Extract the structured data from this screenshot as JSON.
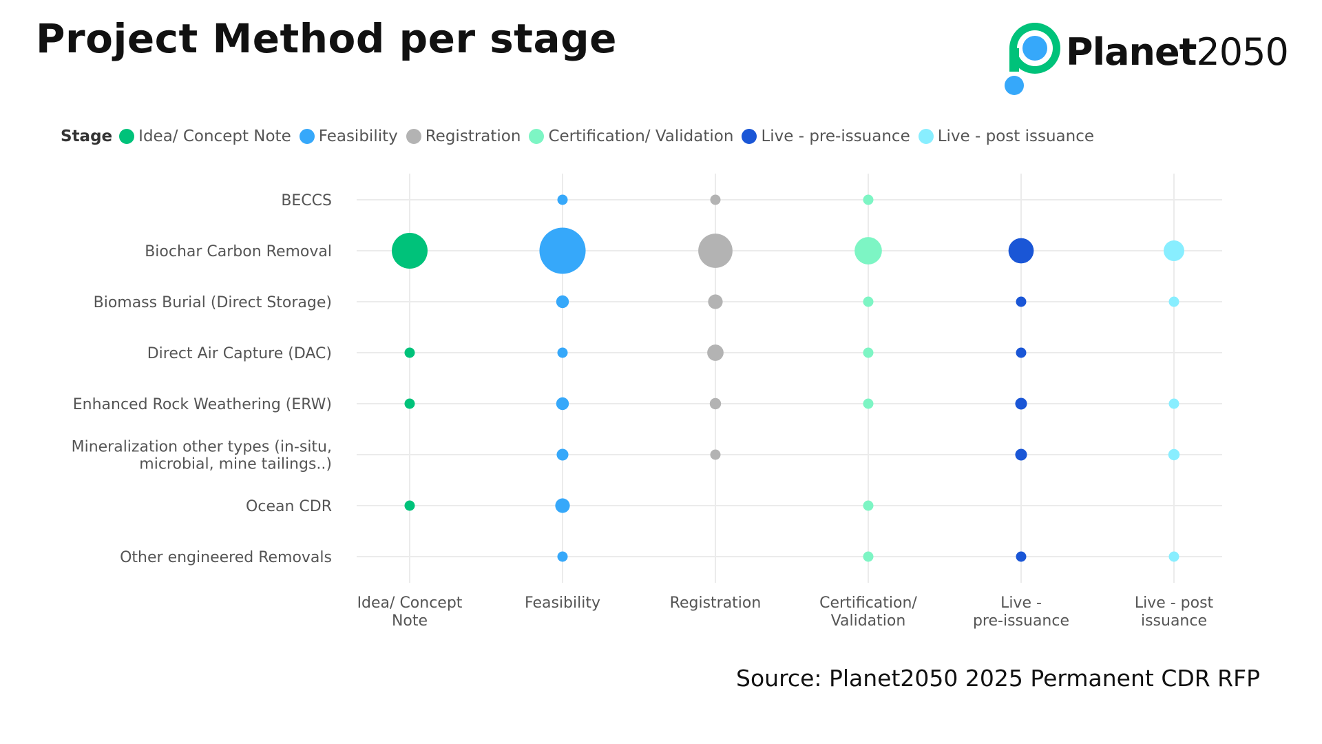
{
  "title": "Project Method per stage",
  "logo": {
    "text_bold": "Planet",
    "text_light": "2050"
  },
  "legend": {
    "title": "Stage"
  },
  "source": "Source: Planet2050 2025 Permanent CDR RFP",
  "chart_data": {
    "type": "scatter",
    "subtype": "bubble-matrix",
    "legend_position": "top-left",
    "grid": true,
    "stages": [
      {
        "name": "Idea/ Concept Note",
        "label_lines": [
          "Idea/ Concept",
          "Note"
        ],
        "color": "#00C27A"
      },
      {
        "name": "Feasibility",
        "label_lines": [
          "Feasibility"
        ],
        "color": "#36A8FA"
      },
      {
        "name": "Registration",
        "label_lines": [
          "Registration"
        ],
        "color": "#B3B3B3"
      },
      {
        "name": "Certification/ Validation",
        "label_lines": [
          "Certification/",
          "Validation"
        ],
        "color": "#7DF5C4"
      },
      {
        "name": "Live - pre-issuance",
        "label_lines": [
          "Live -",
          "pre-issuance"
        ],
        "color": "#1A56D6"
      },
      {
        "name": "Live - post issuance",
        "label_lines": [
          "Live - post",
          "issuance"
        ],
        "color": "#88EEFF"
      }
    ],
    "methods": [
      {
        "name": "BECCS",
        "label_lines": [
          "BECCS"
        ]
      },
      {
        "name": "Biochar Carbon Removal",
        "label_lines": [
          "Biochar Carbon Removal"
        ]
      },
      {
        "name": "Biomass Burial (Direct Storage)",
        "label_lines": [
          "Biomass Burial (Direct Storage)"
        ]
      },
      {
        "name": "Direct Air Capture (DAC)",
        "label_lines": [
          "Direct Air Capture (DAC)"
        ]
      },
      {
        "name": "Enhanced Rock Weathering (ERW)",
        "label_lines": [
          "Enhanced Rock Weathering (ERW)"
        ]
      },
      {
        "name": "Mineralization other types (in-situ, microbial, mine tailings..)",
        "label_lines": [
          "Mineralization other types (in-situ,",
          "microbial, mine tailings..)"
        ]
      },
      {
        "name": "Ocean CDR",
        "label_lines": [
          "Ocean CDR"
        ]
      },
      {
        "name": "Other engineered Removals",
        "label_lines": [
          "Other engineered Removals"
        ]
      }
    ],
    "relative_sizes": [
      [
        0,
        1,
        1,
        1,
        0,
        0
      ],
      [
        12,
        20,
        11,
        7,
        6,
        4
      ],
      [
        0,
        1.5,
        2,
        1,
        1,
        1
      ],
      [
        1,
        1,
        2.5,
        1,
        1,
        0
      ],
      [
        1,
        1.5,
        1.2,
        1,
        1.3,
        1
      ],
      [
        0,
        1.3,
        1,
        0,
        1.3,
        1.2
      ],
      [
        1,
        2,
        0,
        1,
        0,
        0
      ],
      [
        0,
        1,
        0,
        1,
        1,
        1
      ]
    ]
  }
}
